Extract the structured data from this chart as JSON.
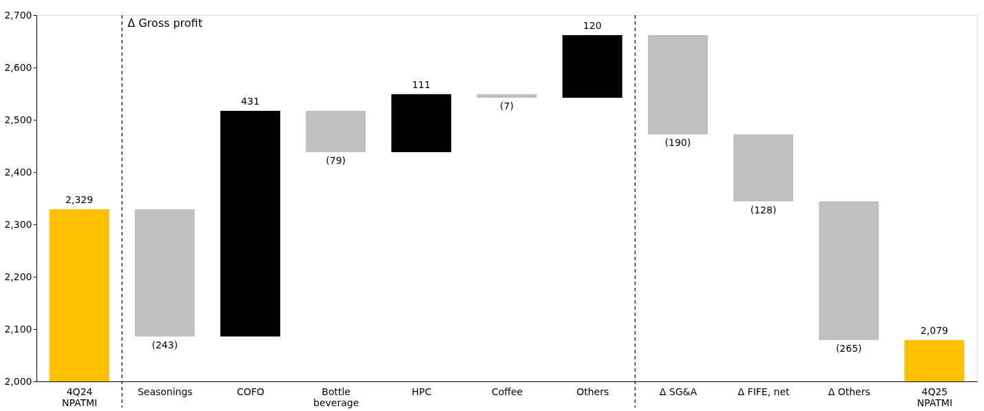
{
  "chart_data": {
    "type": "bar",
    "categories": [
      "4Q24\nNPATMI",
      "Seasonings",
      "COFO",
      "Bottle\nbeverage",
      "HPC",
      "Coffee",
      "Others",
      "Δ SG&A",
      "Δ FIFE, net",
      "Δ Others",
      "4Q25\nNPATMI"
    ],
    "values": [
      2329,
      -243,
      431,
      -79,
      111,
      -7,
      120,
      -190,
      -128,
      -265,
      2079
    ],
    "base": [
      0,
      2329,
      2086,
      2517,
      2438,
      2549,
      2542,
      2662,
      2472,
      2344,
      0
    ],
    "colors": [
      "#ffc000",
      "#bfbfbf",
      "#000000",
      "#bfbfbf",
      "#000000",
      "#bfbfbf",
      "#000000",
      "#bfbfbf",
      "#bfbfbf",
      "#bfbfbf",
      "#ffc000"
    ],
    "value_labels": [
      "2,329",
      "(243)",
      "431",
      "(79)",
      "111",
      "(7)",
      "120",
      "(190)",
      "(128)",
      "(265)",
      "2,079"
    ],
    "ylim": [
      2000,
      2700
    ],
    "yticks": [
      {
        "value": 2000,
        "label": "2,000"
      },
      {
        "value": 2100,
        "label": "2,100"
      },
      {
        "value": 2200,
        "label": "2,200"
      },
      {
        "value": 2300,
        "label": "2,300"
      },
      {
        "value": 2400,
        "label": "2,400"
      },
      {
        "value": 2500,
        "label": "2,500"
      },
      {
        "value": 2600,
        "label": "2,600"
      },
      {
        "value": 2700,
        "label": "2,700"
      }
    ],
    "annotations": [
      "Δ Gross profit"
    ],
    "grid": false
  }
}
